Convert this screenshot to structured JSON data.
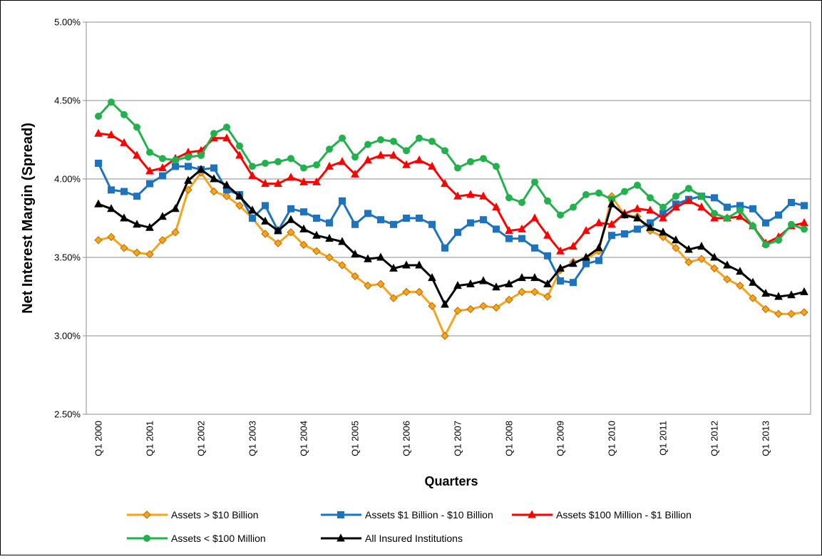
{
  "chart_data": {
    "type": "line",
    "y_label": "Net Interest Margin (Spread)",
    "x_label": "Quarters",
    "categories": [
      "Q1 2000",
      null,
      null,
      null,
      "Q1 2001",
      null,
      null,
      null,
      "Q1 2002",
      null,
      null,
      null,
      "Q1 2003",
      null,
      null,
      null,
      "Q1 2004",
      null,
      null,
      null,
      "Q1 2005",
      null,
      null,
      null,
      "Q1 2006",
      null,
      null,
      null,
      "Q1 2007",
      null,
      null,
      null,
      "Q1 2008",
      null,
      null,
      null,
      "Q1 2009",
      null,
      null,
      null,
      "Q1 2010",
      null,
      null,
      null,
      "Q1 2011",
      null,
      null,
      null,
      "Q1 2012",
      null,
      null,
      null,
      "Q1 2013",
      null,
      null,
      null
    ],
    "ylim": [
      2.5,
      5.0
    ],
    "yticks": [
      {
        "value": 2.5,
        "label": "2.50%"
      },
      {
        "value": 3.0,
        "label": "3.00%"
      },
      {
        "value": 3.5,
        "label": "3.50%"
      },
      {
        "value": 4.0,
        "label": "4.00%"
      },
      {
        "value": 4.5,
        "label": "4.50%"
      },
      {
        "value": 5.0,
        "label": "5.00%"
      }
    ],
    "grid": true,
    "legend": "bottom",
    "series": [
      {
        "name": "Assets > $10 Billion",
        "color": "#F7A31C",
        "marker": "diamond",
        "values": [
          3.61,
          3.63,
          3.56,
          3.53,
          3.52,
          3.61,
          3.66,
          3.93,
          4.04,
          3.92,
          3.89,
          3.83,
          3.75,
          3.65,
          3.59,
          3.66,
          3.58,
          3.54,
          3.5,
          3.45,
          3.38,
          3.32,
          3.33,
          3.24,
          3.28,
          3.28,
          3.19,
          3.0,
          3.16,
          3.17,
          3.19,
          3.18,
          3.23,
          3.28,
          3.28,
          3.25,
          3.42,
          3.47,
          3.49,
          3.54,
          3.89,
          3.77,
          3.76,
          3.67,
          3.63,
          3.56,
          3.47,
          3.49,
          3.43,
          3.36,
          3.32,
          3.24,
          3.17,
          3.14,
          3.14,
          3.15
        ]
      },
      {
        "name": "Assets $1 Billion - $10 Billion",
        "color": "#1E73BE",
        "marker": "square",
        "values": [
          4.1,
          3.93,
          3.92,
          3.89,
          3.97,
          4.02,
          4.08,
          4.08,
          4.06,
          4.07,
          3.93,
          3.9,
          3.75,
          3.83,
          3.67,
          3.81,
          3.79,
          3.75,
          3.72,
          3.86,
          3.71,
          3.78,
          3.74,
          3.71,
          3.75,
          3.75,
          3.71,
          3.56,
          3.66,
          3.72,
          3.74,
          3.68,
          3.62,
          3.62,
          3.56,
          3.51,
          3.35,
          3.34,
          3.46,
          3.48,
          3.64,
          3.65,
          3.68,
          3.72,
          3.78,
          3.84,
          3.87,
          3.89,
          3.88,
          3.82,
          3.83,
          3.81,
          3.72,
          3.77,
          3.85,
          3.83
        ]
      },
      {
        "name": "Assets $100 Million - $1 Billion",
        "color": "#FF0000",
        "marker": "triangle",
        "values": [
          4.29,
          4.28,
          4.23,
          4.15,
          4.05,
          4.07,
          4.13,
          4.17,
          4.18,
          4.26,
          4.26,
          4.15,
          4.02,
          3.97,
          3.97,
          4.01,
          3.98,
          3.98,
          4.08,
          4.11,
          4.03,
          4.12,
          4.15,
          4.15,
          4.09,
          4.12,
          4.08,
          3.97,
          3.89,
          3.9,
          3.89,
          3.82,
          3.67,
          3.68,
          3.75,
          3.64,
          3.54,
          3.57,
          3.67,
          3.72,
          3.71,
          3.78,
          3.81,
          3.8,
          3.75,
          3.82,
          3.86,
          3.82,
          3.75,
          3.75,
          3.76,
          3.7,
          3.59,
          3.63,
          3.7,
          3.72
        ]
      },
      {
        "name": "Assets < $100 Million",
        "color": "#22B14C",
        "marker": "circle",
        "values": [
          4.4,
          4.49,
          4.41,
          4.33,
          4.17,
          4.13,
          4.12,
          4.14,
          4.15,
          4.29,
          4.33,
          4.21,
          4.08,
          4.1,
          4.11,
          4.13,
          4.07,
          4.09,
          4.19,
          4.26,
          4.14,
          4.22,
          4.25,
          4.24,
          4.18,
          4.26,
          4.24,
          4.18,
          4.07,
          4.11,
          4.13,
          4.08,
          3.88,
          3.85,
          3.98,
          3.86,
          3.77,
          3.82,
          3.9,
          3.91,
          3.87,
          3.92,
          3.96,
          3.88,
          3.82,
          3.89,
          3.94,
          3.89,
          3.78,
          3.75,
          3.8,
          3.7,
          3.58,
          3.61,
          3.71,
          3.68
        ]
      },
      {
        "name": "All Insured Institutions",
        "color": "#000000",
        "marker": "triangle",
        "values": [
          3.84,
          3.81,
          3.75,
          3.71,
          3.69,
          3.76,
          3.81,
          3.99,
          4.06,
          4.0,
          3.96,
          3.89,
          3.8,
          3.73,
          3.67,
          3.74,
          3.68,
          3.64,
          3.62,
          3.6,
          3.52,
          3.49,
          3.5,
          3.43,
          3.45,
          3.45,
          3.37,
          3.2,
          3.32,
          3.33,
          3.35,
          3.31,
          3.33,
          3.37,
          3.37,
          3.33,
          3.43,
          3.46,
          3.5,
          3.56,
          3.84,
          3.77,
          3.75,
          3.69,
          3.66,
          3.61,
          3.55,
          3.57,
          3.5,
          3.45,
          3.41,
          3.34,
          3.27,
          3.25,
          3.26,
          3.28
        ]
      }
    ]
  }
}
